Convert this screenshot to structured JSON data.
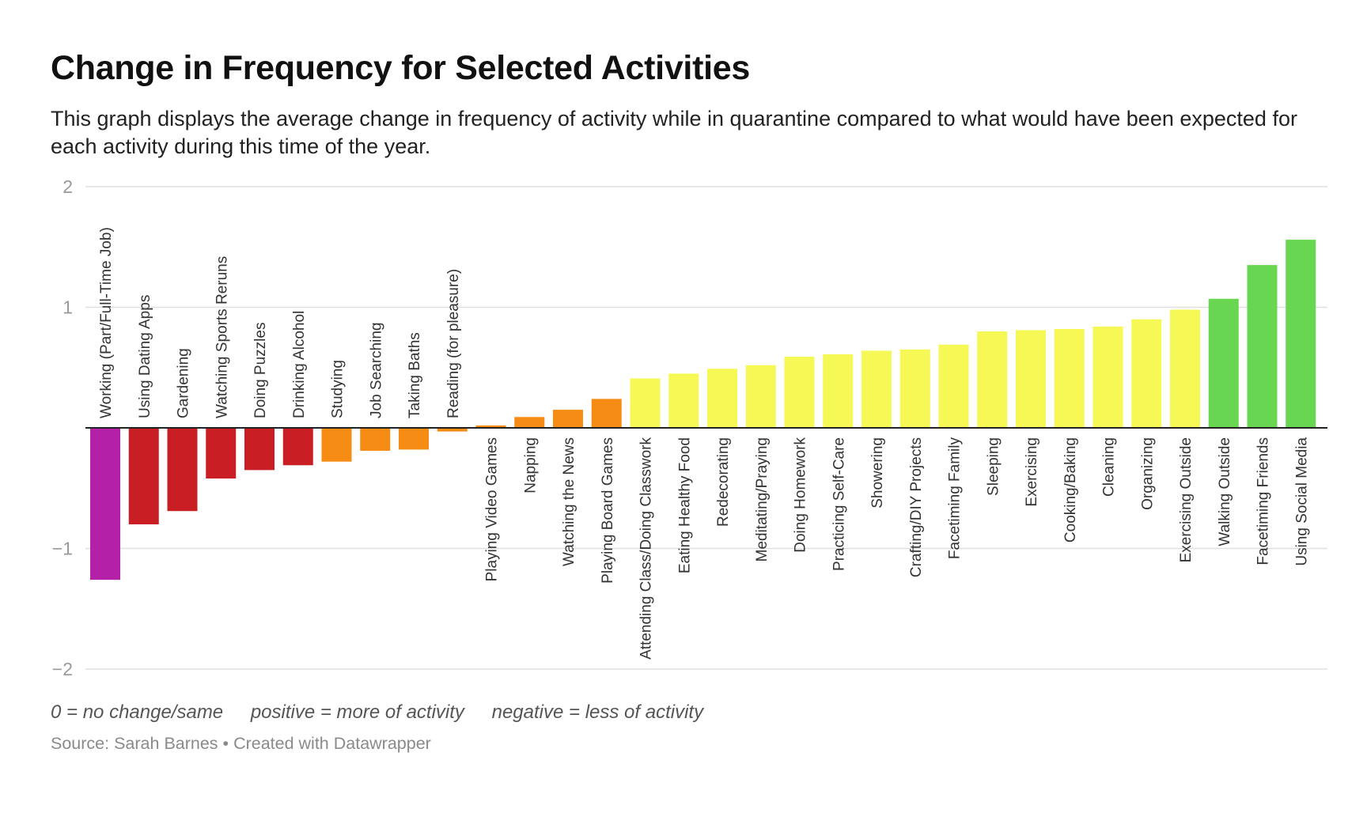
{
  "title": "Change in Frequency for Selected Activities",
  "subtitle": "This graph displays the average change in frequency of activity while in quarantine compared to what would have been expected for each activity during this time of the year.",
  "notes": {
    "zero": "0 = no change/same",
    "positive": "positive = more of activity",
    "negative": "negative = less of activity"
  },
  "footer": {
    "source_label": "Source:",
    "source": "Sarah Barnes",
    "separator": "•",
    "created_with": "Created with Datawrapper"
  },
  "chart_data": {
    "type": "bar",
    "orientation": "vertical",
    "ylim": [
      -2,
      2
    ],
    "yticks": [
      2,
      1,
      -1,
      -2
    ],
    "ytick_labels": [
      "2",
      "1",
      "−1",
      "−2"
    ],
    "grid": true,
    "categories": [
      "Working (Part/Full-Time Job)",
      "Using Dating Apps",
      "Gardening",
      "Watching Sports Reruns",
      "Doing Puzzles",
      "Drinking Alcohol",
      "Studying",
      "Job Searching",
      "Taking Baths",
      "Reading (for pleasure)",
      "Playing Video Games",
      "Napping",
      "Watching the News",
      "Playing Board Games",
      "Attending Class/Doing Classwork",
      "Eating Healthy Food",
      "Redecorating",
      "Meditating/Praying",
      "Doing Homework",
      "Practicing Self-Care",
      "Showering",
      "Crafting/DIY Projects",
      "Facetiming Family",
      "Sleeping",
      "Exercising",
      "Cooking/Baking",
      "Cleaning",
      "Organizing",
      "Exercising Outside",
      "Walking Outside",
      "Facetiming Friends",
      "Using Social Media"
    ],
    "values": [
      -1.26,
      -0.8,
      -0.69,
      -0.42,
      -0.35,
      -0.31,
      -0.28,
      -0.19,
      -0.18,
      -0.03,
      0.02,
      0.09,
      0.15,
      0.24,
      0.41,
      0.45,
      0.49,
      0.52,
      0.59,
      0.61,
      0.64,
      0.65,
      0.69,
      0.8,
      0.81,
      0.82,
      0.84,
      0.9,
      0.98,
      1.07,
      1.35,
      1.56
    ],
    "colors": [
      "#b421a8",
      "#c91f24",
      "#c91f24",
      "#c91f24",
      "#c91f24",
      "#c91f24",
      "#f78c14",
      "#f78c14",
      "#f78c14",
      "#f78c14",
      "#f78c14",
      "#f78c14",
      "#f78c14",
      "#f78c14",
      "#f6f955",
      "#f6f955",
      "#f6f955",
      "#f6f955",
      "#f6f955",
      "#f6f955",
      "#f6f955",
      "#f6f955",
      "#f6f955",
      "#f6f955",
      "#f6f955",
      "#f6f955",
      "#f6f955",
      "#f6f955",
      "#f6f955",
      "#69d652",
      "#69d652",
      "#69d652"
    ],
    "baseline_color": "#222222",
    "grid_color": "#e0e0e0"
  }
}
